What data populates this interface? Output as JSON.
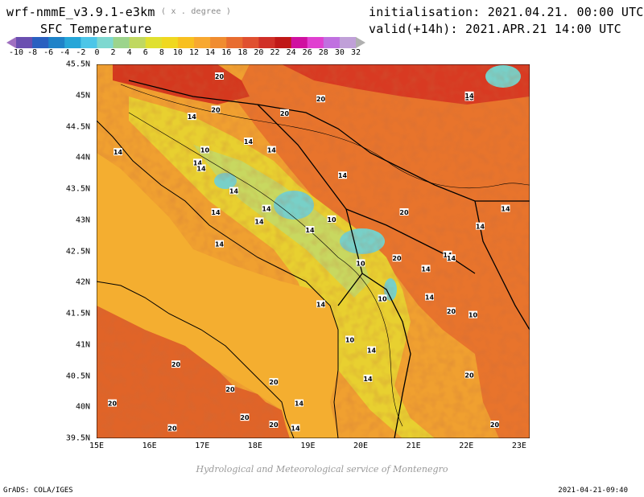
{
  "header": {
    "model": "wrf-nmmE_v3.9.1-e3km",
    "units": "( x . degree )",
    "field": "SFC Temperature",
    "init": "initialisation: 2021.04.21. 00:00 UTC",
    "valid": "valid(+14h): 2021.APR.21 14:00 UTC"
  },
  "colorbar": {
    "ticks": [
      "-10",
      "-8",
      "-6",
      "-4",
      "-2",
      "0",
      "2",
      "4",
      "6",
      "8",
      "10",
      "12",
      "14",
      "16",
      "18",
      "20",
      "22",
      "24",
      "26",
      "28",
      "30",
      "32"
    ],
    "colors": [
      "#a070c0",
      "#6a4fb0",
      "#2a60c0",
      "#1e82c8",
      "#26a6d8",
      "#4cc6e8",
      "#7ed8d0",
      "#9cd48c",
      "#c0d860",
      "#e0e030",
      "#f0d820",
      "#f8c020",
      "#f8a830",
      "#f08c30",
      "#e86c30",
      "#e05030",
      "#d03028",
      "#c01818",
      "#d010a0",
      "#e040d0",
      "#c070e0",
      "#c0a0d8",
      "#b0b0b0"
    ]
  },
  "map": {
    "lat_labels": [
      "45.5N",
      "45N",
      "44.5N",
      "44N",
      "43.5N",
      "43N",
      "42.5N",
      "42N",
      "41.5N",
      "41N",
      "40.5N",
      "40N",
      "39.5N"
    ],
    "lon_labels": [
      "15E",
      "16E",
      "17E",
      "18E",
      "19E",
      "20E",
      "21E",
      "22E",
      "23E"
    ],
    "extent": {
      "lon": [
        15,
        23.2
      ],
      "lat": [
        39.5,
        45.5
      ]
    },
    "contour_labels": [
      "20",
      "20",
      "20",
      "20",
      "14",
      "14",
      "14",
      "14",
      "10",
      "14",
      "14",
      "14",
      "14",
      "14",
      "14",
      "14",
      "14",
      "10",
      "10",
      "10",
      "10",
      "14",
      "14",
      "14",
      "14",
      "14",
      "14",
      "14",
      "10",
      "14",
      "14",
      "20",
      "20",
      "20",
      "20",
      "20",
      "20",
      "20",
      "20",
      "14",
      "14",
      "10",
      "14",
      "14",
      "20",
      "20",
      "20",
      "20"
    ]
  },
  "footer": "Hydrological and Meteorological service of Montenegro",
  "grads": "GrADS: COLA/IGES",
  "stamp": "2021-04-21-09:40"
}
